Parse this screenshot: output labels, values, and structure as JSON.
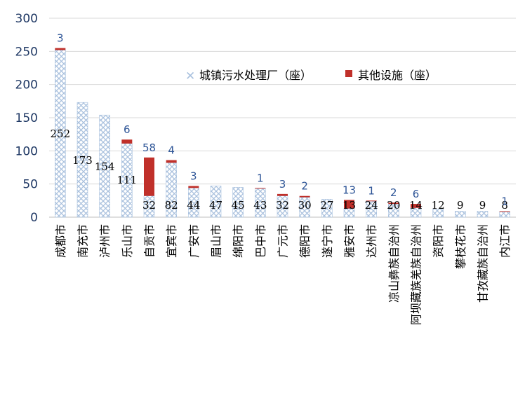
{
  "chart_data": {
    "type": "bar",
    "stacked": true,
    "categories": [
      "成都市",
      "南充市",
      "泸州市",
      "乐山市",
      "自贡市",
      "宜宾市",
      "广安市",
      "眉山市",
      "绵阳市",
      "巴中市",
      "广元市",
      "德阳市",
      "遂宁市",
      "雅安市",
      "达州市",
      "凉山彝族自治州",
      "阿坝藏族羌族自治州",
      "资阳市",
      "攀枝花市",
      "甘孜藏族自治州",
      "内江市"
    ],
    "series": [
      {
        "name": "城镇污水处理厂（座）",
        "values": [
          252,
          173,
          154,
          111,
          32,
          82,
          44,
          47,
          45,
          43,
          32,
          30,
          27,
          13,
          24,
          20,
          14,
          12,
          9,
          9,
          8
        ],
        "color": "#a9c1de"
      },
      {
        "name": "其他设施（座）",
        "values": [
          3,
          0,
          0,
          6,
          58,
          4,
          3,
          0,
          0,
          1,
          3,
          2,
          0,
          13,
          1,
          2,
          6,
          0,
          0,
          0,
          1
        ],
        "color": "#c0302a"
      }
    ],
    "top_labels": [
      "3",
      "",
      "",
      "6",
      "58",
      "4",
      "3",
      "",
      "",
      "1",
      "3",
      "2",
      "",
      "13",
      "1",
      "2",
      "6",
      "",
      "",
      "",
      "1"
    ],
    "yticks": [
      0,
      50,
      100,
      150,
      200,
      250,
      300
    ],
    "ylim": [
      0,
      300
    ],
    "legend_position": "top-right",
    "grid": true
  }
}
